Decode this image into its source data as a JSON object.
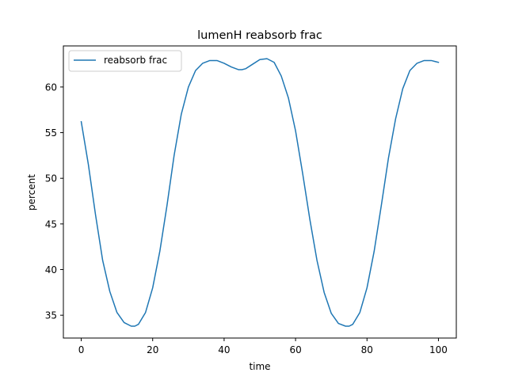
{
  "chart_data": {
    "type": "line",
    "title": "lumenH reabsorb frac",
    "xlabel": "time",
    "ylabel": "percent",
    "xlim": [
      -5,
      105
    ],
    "ylim": [
      32.5,
      64.5
    ],
    "xticks": [
      0,
      20,
      40,
      60,
      80,
      100
    ],
    "yticks": [
      35,
      40,
      45,
      50,
      55,
      60
    ],
    "grid": false,
    "legend": {
      "placement": "upper-left",
      "entries": [
        "reabsorb frac"
      ]
    },
    "series": [
      {
        "name": "reabsorb frac",
        "color": "#1f77b4",
        "x": [
          0,
          2,
          4,
          6,
          8,
          10,
          12,
          14,
          15,
          16,
          18,
          20,
          22,
          24,
          26,
          28,
          30,
          32,
          34,
          36,
          38,
          40,
          42,
          44,
          45,
          46,
          48,
          50,
          52,
          54,
          56,
          58,
          60,
          62,
          64,
          66,
          68,
          70,
          72,
          74,
          75,
          76,
          78,
          80,
          82,
          84,
          86,
          88,
          90,
          92,
          94,
          96,
          98,
          99,
          100
        ],
        "y": [
          56.2,
          51.5,
          46.0,
          41.0,
          37.6,
          35.3,
          34.2,
          33.8,
          33.8,
          34.0,
          35.3,
          38.0,
          42.0,
          47.0,
          52.5,
          57.0,
          60.0,
          61.8,
          62.6,
          62.9,
          62.9,
          62.6,
          62.2,
          61.9,
          61.9,
          62.0,
          62.5,
          63.0,
          63.1,
          62.7,
          61.2,
          58.8,
          55.2,
          50.5,
          45.5,
          41.0,
          37.5,
          35.2,
          34.1,
          33.8,
          33.8,
          34.0,
          35.3,
          38.0,
          42.0,
          47.0,
          52.2,
          56.5,
          59.8,
          61.8,
          62.6,
          62.9,
          62.9,
          62.8,
          62.7
        ]
      }
    ]
  }
}
